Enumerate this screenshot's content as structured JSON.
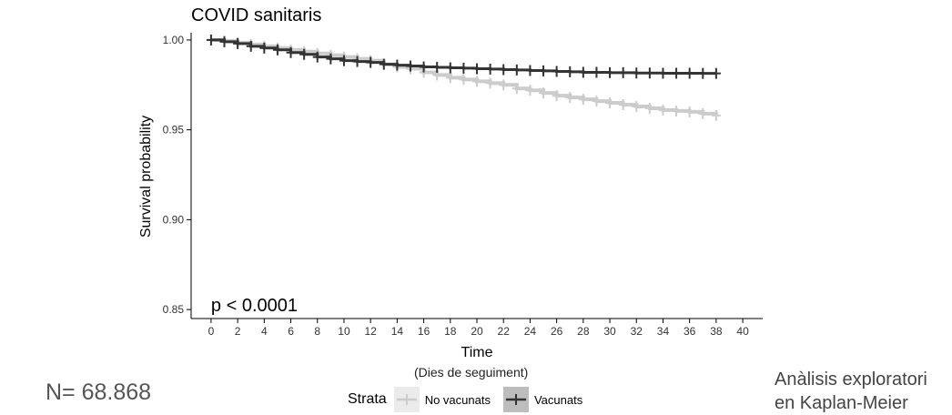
{
  "chart_data": {
    "type": "line",
    "subtype": "kaplan-meier step survival curve with censoring marks",
    "title": "COVID sanitaris",
    "xlabel": "Time",
    "xlabel_sub": "(Dies de seguiment)",
    "ylabel": "Survival probability",
    "xlim": [
      -1.5,
      41.5
    ],
    "ylim": [
      0.845,
      1.003
    ],
    "xticks": [
      0,
      2,
      4,
      6,
      8,
      10,
      12,
      14,
      16,
      18,
      20,
      22,
      24,
      26,
      28,
      30,
      32,
      34,
      36,
      38,
      40
    ],
    "yticks": [
      0.85,
      0.9,
      0.95,
      1.0
    ],
    "ytick_labels": [
      "0.85",
      "0.90",
      "0.95",
      "1.00"
    ],
    "annotation": "p < 0.0001",
    "legend_title": "Strata",
    "legend_position": "bottom",
    "series": [
      {
        "name": "No vacunats",
        "color": "#cccccc",
        "x": [
          0,
          1,
          2,
          3,
          4,
          5,
          6,
          7,
          8,
          9,
          10,
          11,
          12,
          13,
          14,
          15,
          16,
          17,
          18,
          19,
          20,
          21,
          22,
          23,
          24,
          25,
          26,
          27,
          28,
          29,
          30,
          31,
          32,
          33,
          34,
          35,
          36,
          37,
          38
        ],
        "y": [
          1.0,
          0.9995,
          0.9985,
          0.9975,
          0.9965,
          0.9955,
          0.9945,
          0.9935,
          0.9925,
          0.9915,
          0.9905,
          0.9895,
          0.9885,
          0.9865,
          0.985,
          0.984,
          0.982,
          0.9805,
          0.979,
          0.978,
          0.977,
          0.976,
          0.975,
          0.973,
          0.972,
          0.9705,
          0.969,
          0.968,
          0.967,
          0.966,
          0.965,
          0.964,
          0.963,
          0.962,
          0.961,
          0.9605,
          0.96,
          0.959,
          0.958
        ]
      },
      {
        "name": "Vacunats",
        "color": "#333333",
        "x": [
          0,
          1,
          2,
          3,
          4,
          5,
          6,
          7,
          8,
          9,
          10,
          11,
          12,
          13,
          14,
          15,
          16,
          17,
          18,
          19,
          20,
          21,
          22,
          23,
          24,
          25,
          26,
          27,
          28,
          29,
          30,
          31,
          32,
          33,
          34,
          35,
          36,
          37,
          38
        ],
        "y": [
          1.0,
          0.999,
          0.998,
          0.9965,
          0.9955,
          0.9945,
          0.993,
          0.992,
          0.9905,
          0.9895,
          0.9885,
          0.988,
          0.9875,
          0.9865,
          0.986,
          0.9855,
          0.985,
          0.9848,
          0.9845,
          0.9843,
          0.984,
          0.9838,
          0.9835,
          0.9833,
          0.983,
          0.9828,
          0.9825,
          0.9823,
          0.982,
          0.982,
          0.9818,
          0.9818,
          0.9816,
          0.9816,
          0.9815,
          0.9815,
          0.9815,
          0.9814,
          0.9814
        ]
      }
    ]
  },
  "page": {
    "n_label": "N= 68.868",
    "side_note_line1": "Anàlisis exploratori",
    "side_note_line2": "en Kaplan-Meier"
  }
}
